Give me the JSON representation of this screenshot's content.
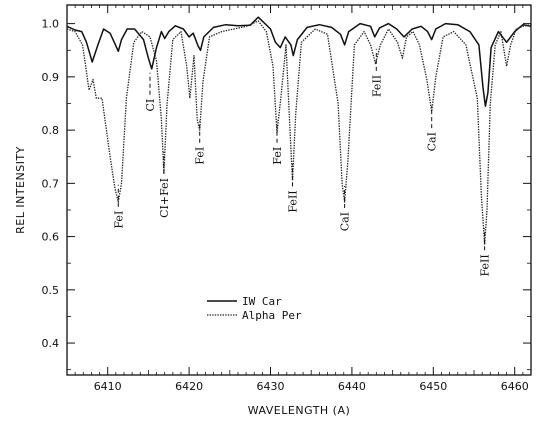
{
  "chart_data": {
    "type": "line",
    "xlabel": "WAVELENGTH (A)",
    "ylabel": "REL INTENSITY",
    "xlim": [
      6405,
      6462
    ],
    "ylim": [
      0.34,
      1.035
    ],
    "x_ticks": [
      6410,
      6420,
      6430,
      6440,
      6450,
      6460
    ],
    "y_ticks": [
      0.4,
      0.5,
      0.6,
      0.7,
      0.8,
      0.9,
      1.0
    ],
    "grid": false,
    "legend_position": "lower-left",
    "series": [
      {
        "name": "IW Car",
        "style": "solid",
        "color": "#111111",
        "x": [
          6405,
          6406,
          6406.8,
          6407.4,
          6408.1,
          6408.8,
          6409.5,
          6410.3,
          6410.9,
          6411.3,
          6411.7,
          6412.4,
          6413.3,
          6414.4,
          6415,
          6415.4,
          6416,
          6416.6,
          6417,
          6417.5,
          6418.3,
          6419.3,
          6420,
          6420.5,
          6421.1,
          6421.4,
          6421.8,
          6423,
          6424.5,
          6426,
          6427.5,
          6428.5,
          6430,
          6430.6,
          6431.2,
          6431.8,
          6432.5,
          6432.8,
          6433.3,
          6434.5,
          6436,
          6437.5,
          6438.6,
          6439.1,
          6439.6,
          6441,
          6442.3,
          6442.8,
          6443.4,
          6444.5,
          6445.5,
          6446.4,
          6447.4,
          6448.5,
          6449.3,
          6449.8,
          6450.3,
          6451.5,
          6453,
          6454.5,
          6455.6,
          6456.1,
          6456.4,
          6456.7,
          6457.1,
          6458,
          6459,
          6460,
          6461,
          6462
        ],
        "y": [
          0.995,
          0.988,
          0.985,
          0.965,
          0.928,
          0.96,
          0.99,
          0.982,
          0.962,
          0.948,
          0.97,
          0.99,
          0.99,
          0.97,
          0.935,
          0.915,
          0.955,
          0.985,
          0.972,
          0.985,
          0.996,
          0.99,
          0.975,
          0.982,
          0.958,
          0.95,
          0.975,
          0.993,
          0.998,
          0.996,
          0.997,
          1.012,
          0.99,
          0.965,
          0.955,
          0.975,
          0.96,
          0.94,
          0.97,
          0.993,
          0.998,
          0.993,
          0.98,
          0.96,
          0.985,
          1.0,
          0.995,
          0.975,
          0.992,
          1.0,
          0.99,
          0.975,
          0.99,
          0.995,
          0.985,
          0.97,
          0.99,
          1.0,
          0.998,
          0.985,
          0.96,
          0.88,
          0.845,
          0.87,
          0.955,
          0.985,
          0.965,
          0.985,
          0.998,
          0.995
        ]
      },
      {
        "name": "Alpha Per",
        "style": "dotted",
        "color": "#222222",
        "x": [
          6405,
          6406,
          6406.9,
          6407.3,
          6407.7,
          6408.2,
          6408.6,
          6409.3,
          6410.3,
          6410.9,
          6411.3,
          6411.7,
          6412.3,
          6413.2,
          6414.2,
          6415.2,
          6416,
          6416.6,
          6416.9,
          6417.3,
          6418,
          6419,
          6419.7,
          6420.1,
          6420.6,
          6421,
          6421.3,
          6421.7,
          6422.5,
          6424,
          6425.5,
          6427,
          6428.5,
          6429.5,
          6430.3,
          6430.8,
          6431.3,
          6431.9,
          6432.4,
          6432.7,
          6433.1,
          6433.8,
          6435.5,
          6437,
          6438.3,
          6438.8,
          6439.1,
          6439.5,
          6440.3,
          6441.5,
          6442.3,
          6442.9,
          6443.5,
          6444.5,
          6445.6,
          6446.2,
          6446.7,
          6447.5,
          6448.3,
          6449.2,
          6449.8,
          6450.3,
          6451.2,
          6452.5,
          6454,
          6455.4,
          6455.9,
          6456.3,
          6456.6,
          6457,
          6457.6,
          6458.3,
          6459,
          6459.5,
          6460.2,
          6461,
          6462
        ],
        "y": [
          0.99,
          0.985,
          0.96,
          0.92,
          0.875,
          0.895,
          0.86,
          0.86,
          0.75,
          0.69,
          0.665,
          0.7,
          0.86,
          0.965,
          0.985,
          0.975,
          0.93,
          0.82,
          0.72,
          0.85,
          0.97,
          0.985,
          0.92,
          0.86,
          0.94,
          0.82,
          0.8,
          0.89,
          0.975,
          0.985,
          0.99,
          0.995,
          1.005,
          0.985,
          0.92,
          0.795,
          0.865,
          0.96,
          0.8,
          0.705,
          0.83,
          0.965,
          0.99,
          0.98,
          0.85,
          0.7,
          0.665,
          0.74,
          0.96,
          0.985,
          0.96,
          0.925,
          0.96,
          0.99,
          0.965,
          0.935,
          0.975,
          0.985,
          0.96,
          0.895,
          0.835,
          0.9,
          0.975,
          0.985,
          0.96,
          0.86,
          0.68,
          0.585,
          0.65,
          0.85,
          0.96,
          0.985,
          0.92,
          0.96,
          0.99,
          0.995,
          0.998
        ]
      }
    ],
    "annotations": [
      {
        "text": "FeI",
        "x": 6411.3,
        "y": 0.615
      },
      {
        "text": "CI",
        "x": 6415.2,
        "y": 0.835
      },
      {
        "text": "CI+FeI",
        "x": 6416.9,
        "y": 0.635
      },
      {
        "text": "FeI",
        "x": 6421.3,
        "y": 0.735
      },
      {
        "text": "FeI",
        "x": 6430.8,
        "y": 0.735
      },
      {
        "text": "FeII",
        "x": 6432.7,
        "y": 0.645
      },
      {
        "text": "CaI",
        "x": 6439.1,
        "y": 0.61
      },
      {
        "text": "FeII",
        "x": 6443.0,
        "y": 0.862
      },
      {
        "text": "CaI",
        "x": 6449.8,
        "y": 0.76
      },
      {
        "text": "FeII",
        "x": 6456.3,
        "y": 0.525
      }
    ]
  }
}
